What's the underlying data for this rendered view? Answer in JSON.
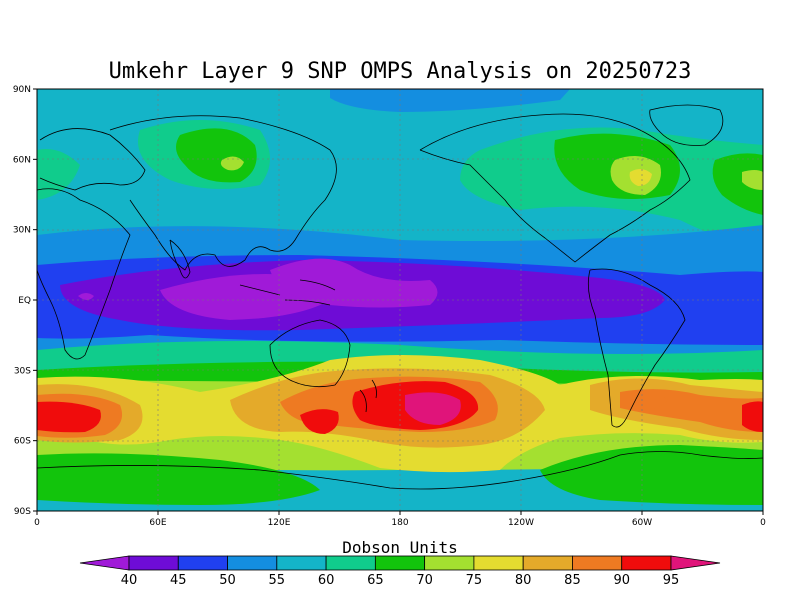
{
  "title": "Umkehr Layer 9 SNP OMPS Analysis on 20250723",
  "lat_ticks": [
    "90N",
    "60N",
    "30N",
    "EQ",
    "30S",
    "60S",
    "90S"
  ],
  "lon_ticks": [
    "0",
    "60E",
    "120E",
    "180",
    "120W",
    "60W",
    "0"
  ],
  "colorbar": {
    "title": "Dobson Units",
    "levels": [
      "40",
      "45",
      "50",
      "55",
      "60",
      "65",
      "70",
      "75",
      "80",
      "85",
      "90",
      "95"
    ],
    "colors": [
      "#a01ad8",
      "#6e0cd6",
      "#2040f0",
      "#148ee0",
      "#14b4c8",
      "#10cc8c",
      "#12c40c",
      "#a4e030",
      "#e4dc30",
      "#e4aa2a",
      "#ee7a22",
      "#f00c0c",
      "#e0147a"
    ]
  },
  "map_type": "cylindrical equidistant global map",
  "chart_data": {
    "type": "heatmap",
    "title": "Umkehr Layer 9 SNP OMPS Analysis on 20250723",
    "xlabel": "",
    "ylabel": "",
    "x_ticks": [
      "0",
      "60E",
      "120E",
      "180",
      "120W",
      "60W",
      "0"
    ],
    "y_ticks": [
      "90N",
      "60N",
      "30N",
      "EQ",
      "30S",
      "60S",
      "90S"
    ],
    "units": "Dobson Units",
    "contour_levels": [
      40,
      45,
      50,
      55,
      60,
      65,
      70,
      75,
      80,
      85,
      90,
      95
    ],
    "grid": true
  }
}
